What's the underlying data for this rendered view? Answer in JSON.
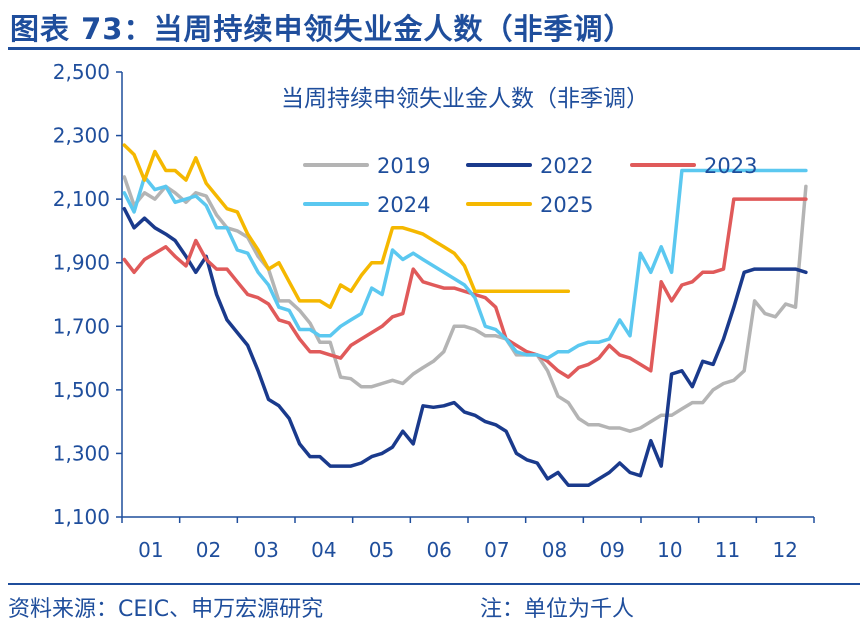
{
  "header": {
    "title": "图表 73：当周持续申领失业金人数（非季调）"
  },
  "footer": {
    "source": "资料来源：CEIC、申万宏源研究",
    "note": "注：单位为千人"
  },
  "colors": {
    "brand_blue": "#1f4e9c"
  },
  "chart_data": {
    "type": "line",
    "title": "当周持续申领失业金人数（非季调）",
    "xlabel": "",
    "ylabel": "",
    "ylim": [
      1100,
      2500
    ],
    "yticks": [
      1100,
      1300,
      1500,
      1700,
      1900,
      2100,
      2300,
      2500
    ],
    "ytick_labels": [
      "1,100",
      "1,300",
      "1,500",
      "1,700",
      "1,900",
      "2,100",
      "2,300",
      "2,500"
    ],
    "x_domain": [
      1,
      13
    ],
    "xticks": [
      1,
      2,
      3,
      4,
      5,
      6,
      7,
      8,
      9,
      10,
      11,
      12
    ],
    "xtick_labels": [
      "01",
      "02",
      "03",
      "04",
      "05",
      "06",
      "07",
      "08",
      "09",
      "10",
      "11",
      "12"
    ],
    "grid": false,
    "legend": "top",
    "series": [
      {
        "name": "2019",
        "color": "#b4b4b4",
        "x": [
          1.04,
          1.21,
          1.39,
          1.57,
          1.76,
          1.92,
          2.11,
          2.28,
          2.46,
          2.64,
          2.82,
          3.0,
          3.18,
          3.36,
          3.54,
          3.72,
          3.9,
          4.08,
          4.26,
          4.43,
          4.61,
          4.79,
          4.97,
          5.15,
          5.33,
          5.51,
          5.69,
          5.87,
          6.05,
          6.22,
          6.4,
          6.58,
          6.76,
          6.94,
          7.12,
          7.3,
          7.48,
          7.66,
          7.84,
          8.02,
          8.2,
          8.38,
          8.56,
          8.74,
          8.92,
          9.09,
          9.27,
          9.45,
          9.63,
          9.81,
          9.99,
          10.17,
          10.35,
          10.53,
          10.71,
          10.89,
          11.07,
          11.25,
          11.43,
          11.61,
          11.79,
          11.97,
          12.15,
          12.33,
          12.51,
          12.68,
          12.86
        ],
        "y": [
          2170,
          2080,
          2120,
          2100,
          2140,
          2120,
          2090,
          2120,
          2110,
          2050,
          2010,
          2000,
          1980,
          1920,
          1880,
          1780,
          1780,
          1750,
          1710,
          1650,
          1650,
          1540,
          1535,
          1510,
          1510,
          1520,
          1530,
          1520,
          1550,
          1570,
          1590,
          1620,
          1700,
          1700,
          1690,
          1670,
          1670,
          1660,
          1610,
          1610,
          1610,
          1560,
          1480,
          1460,
          1410,
          1390,
          1390,
          1380,
          1380,
          1370,
          1380,
          1400,
          1420,
          1420,
          1440,
          1460,
          1460,
          1500,
          1520,
          1530,
          1560,
          1780,
          1740,
          1730,
          1770,
          1760,
          2140
        ]
      },
      {
        "name": "2022",
        "color": "#1a3a8c",
        "x": [
          1.04,
          1.21,
          1.39,
          1.57,
          1.76,
          1.92,
          2.11,
          2.28,
          2.46,
          2.64,
          2.82,
          3.0,
          3.18,
          3.36,
          3.54,
          3.72,
          3.9,
          4.08,
          4.26,
          4.43,
          4.61,
          4.79,
          4.97,
          5.15,
          5.33,
          5.51,
          5.69,
          5.87,
          6.05,
          6.22,
          6.4,
          6.58,
          6.76,
          6.94,
          7.12,
          7.3,
          7.48,
          7.66,
          7.84,
          8.02,
          8.2,
          8.38,
          8.56,
          8.74,
          8.92,
          9.09,
          9.27,
          9.45,
          9.63,
          9.81,
          9.99,
          10.17,
          10.35,
          10.53,
          10.71,
          10.89,
          11.07,
          11.25,
          11.43,
          11.61,
          11.79,
          11.97,
          12.15,
          12.33,
          12.51,
          12.68,
          12.86
        ],
        "y": [
          2070,
          2010,
          2040,
          2010,
          1990,
          1970,
          1920,
          1870,
          1920,
          1800,
          1720,
          1680,
          1640,
          1560,
          1470,
          1450,
          1410,
          1330,
          1290,
          1290,
          1260,
          1260,
          1260,
          1270,
          1290,
          1300,
          1320,
          1370,
          1330,
          1450,
          1445,
          1450,
          1460,
          1430,
          1420,
          1400,
          1390,
          1370,
          1300,
          1280,
          1270,
          1220,
          1240,
          1200,
          1200,
          1200,
          1220,
          1240,
          1270,
          1240,
          1230,
          1340,
          1260,
          1550,
          1560,
          1510,
          1590,
          1580,
          1660,
          1760,
          1870,
          1880,
          1880,
          1880,
          1880,
          1880,
          1870
        ]
      },
      {
        "name": "2023",
        "color": "#e05a5a",
        "x": [
          1.04,
          1.21,
          1.39,
          1.57,
          1.76,
          1.92,
          2.11,
          2.28,
          2.46,
          2.64,
          2.82,
          3.0,
          3.18,
          3.36,
          3.54,
          3.72,
          3.9,
          4.08,
          4.26,
          4.43,
          4.61,
          4.79,
          4.97,
          5.15,
          5.33,
          5.51,
          5.69,
          5.87,
          6.05,
          6.22,
          6.4,
          6.58,
          6.76,
          6.94,
          7.12,
          7.3,
          7.48,
          7.66,
          7.84,
          8.02,
          8.2,
          8.38,
          8.56,
          8.74,
          8.92,
          9.09,
          9.27,
          9.45,
          9.63,
          9.81,
          9.99,
          10.17,
          10.35,
          10.53,
          10.71,
          10.89,
          11.07,
          11.25,
          11.43,
          11.61,
          11.79,
          11.97,
          12.15,
          12.33,
          12.51,
          12.68,
          12.86
        ],
        "y": [
          1910,
          1870,
          1910,
          1930,
          1950,
          1920,
          1890,
          1970,
          1910,
          1880,
          1880,
          1840,
          1800,
          1790,
          1770,
          1720,
          1710,
          1660,
          1620,
          1620,
          1610,
          1600,
          1640,
          1660,
          1680,
          1700,
          1730,
          1740,
          1880,
          1840,
          1830,
          1820,
          1820,
          1810,
          1800,
          1790,
          1760,
          1660,
          1640,
          1620,
          1610,
          1590,
          1560,
          1540,
          1570,
          1580,
          1600,
          1640,
          1610,
          1600,
          1580,
          1560,
          1840,
          1780,
          1830,
          1840,
          1870,
          1870,
          1880,
          2100,
          2100,
          2100,
          2100,
          2100,
          2100,
          2100,
          2100
        ]
      },
      {
        "name": "2024",
        "color": "#5bc8f0",
        "x": [
          1.04,
          1.21,
          1.39,
          1.57,
          1.76,
          1.92,
          2.11,
          2.28,
          2.46,
          2.64,
          2.82,
          3.0,
          3.18,
          3.36,
          3.54,
          3.72,
          3.9,
          4.08,
          4.26,
          4.43,
          4.61,
          4.79,
          4.97,
          5.15,
          5.33,
          5.51,
          5.69,
          5.87,
          6.05,
          6.22,
          6.4,
          6.58,
          6.76,
          6.94,
          7.12,
          7.3,
          7.48,
          7.66,
          7.84,
          8.02,
          8.2,
          8.38,
          8.56,
          8.74,
          8.92,
          9.09,
          9.27,
          9.45,
          9.63,
          9.81,
          9.99,
          10.17,
          10.35,
          10.53,
          10.71,
          10.89,
          11.07,
          11.25,
          11.43,
          11.61,
          11.79,
          11.97,
          12.15,
          12.33,
          12.51,
          12.68,
          12.86
        ],
        "y": [
          2120,
          2060,
          2170,
          2130,
          2140,
          2090,
          2100,
          2110,
          2080,
          2010,
          2010,
          1940,
          1930,
          1870,
          1830,
          1760,
          1750,
          1690,
          1690,
          1670,
          1670,
          1700,
          1720,
          1740,
          1820,
          1800,
          1940,
          1910,
          1930,
          1910,
          1890,
          1870,
          1850,
          1830,
          1790,
          1700,
          1690,
          1660,
          1620,
          1610,
          1610,
          1600,
          1620,
          1620,
          1640,
          1650,
          1650,
          1660,
          1720,
          1670,
          1930,
          1870,
          1950,
          1870,
          2190,
          2190,
          2190,
          2190,
          2190,
          2190,
          2190,
          2190,
          2190,
          2190,
          2190,
          2190,
          2190
        ]
      },
      {
        "name": "2025",
        "color": "#f5b800",
        "x": [
          1.04,
          1.21,
          1.39,
          1.57,
          1.76,
          1.92,
          2.11,
          2.28,
          2.46,
          2.64,
          2.82,
          3.0,
          3.18,
          3.36,
          3.54,
          3.72,
          3.9,
          4.08,
          4.26,
          4.43,
          4.61,
          4.79,
          4.97,
          5.15,
          5.33,
          5.51,
          5.69,
          5.87,
          6.05,
          6.22,
          6.4,
          6.58,
          6.76,
          6.94,
          7.12,
          7.3,
          7.48,
          7.66,
          7.84,
          8.02,
          8.2,
          8.38,
          8.56,
          8.74
        ],
        "y": [
          2270,
          2240,
          2160,
          2250,
          2190,
          2190,
          2160,
          2230,
          2150,
          2110,
          2070,
          2060,
          1990,
          1940,
          1880,
          1900,
          1840,
          1780,
          1780,
          1780,
          1760,
          1830,
          1810,
          1860,
          1900,
          1900,
          2010,
          2010,
          2000,
          1990,
          1970,
          1950,
          1930,
          1890,
          1810,
          1810,
          1810,
          1810,
          1810,
          1810,
          1810,
          1810,
          1810,
          1810
        ]
      }
    ]
  }
}
